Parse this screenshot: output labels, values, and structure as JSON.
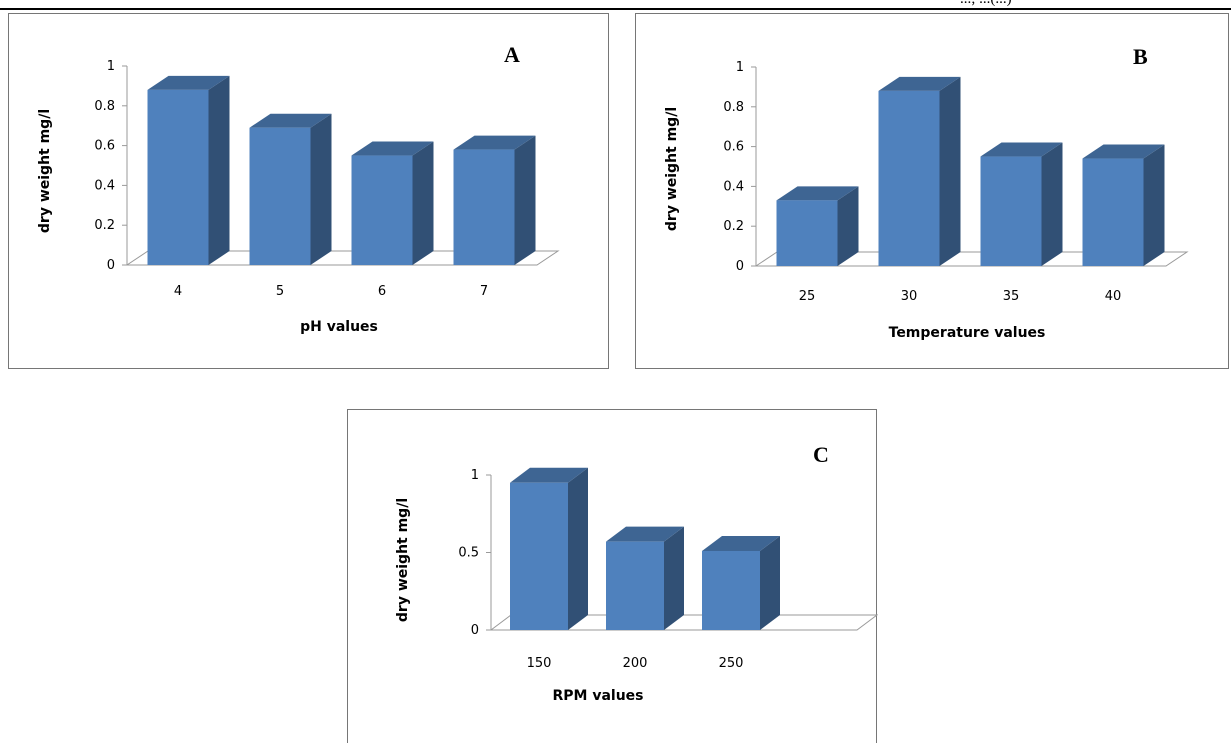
{
  "header": {
    "cut_text": "...; ...(...)"
  },
  "chart_data": [
    {
      "type": "bar",
      "panel_letter": "A",
      "categories": [
        "4",
        "5",
        "6",
        "7"
      ],
      "values": [
        0.88,
        0.69,
        0.55,
        0.58
      ],
      "xlabel": "pH values",
      "ylabel": "dry weight mg/l",
      "ylim": [
        0,
        1
      ],
      "yticks": [
        "0",
        "0.2",
        "0.4",
        "0.6",
        "0.8",
        "1"
      ],
      "grid": false,
      "legend": "none",
      "bar_color": "#4f81bd"
    },
    {
      "type": "bar",
      "panel_letter": "B",
      "categories": [
        "25",
        "30",
        "35",
        "40"
      ],
      "values": [
        0.33,
        0.88,
        0.55,
        0.54
      ],
      "xlabel": "Temperature values",
      "ylabel": "dry weight mg/l",
      "ylim": [
        0,
        1
      ],
      "yticks": [
        "0",
        "0.2",
        "0.4",
        "0.6",
        "0.8",
        "1"
      ],
      "grid": false,
      "legend": "none",
      "bar_color": "#4f81bd"
    },
    {
      "type": "bar",
      "panel_letter": "C",
      "categories": [
        "150",
        "200",
        "250"
      ],
      "values": [
        0.95,
        0.57,
        0.51
      ],
      "xlabel": "RPM values",
      "ylabel": "dry weight mg/l",
      "ylim": [
        0,
        1
      ],
      "yticks": [
        "0",
        "0.5",
        "1"
      ],
      "grid": false,
      "legend": "none",
      "bar_color": "#4f81bd"
    }
  ]
}
